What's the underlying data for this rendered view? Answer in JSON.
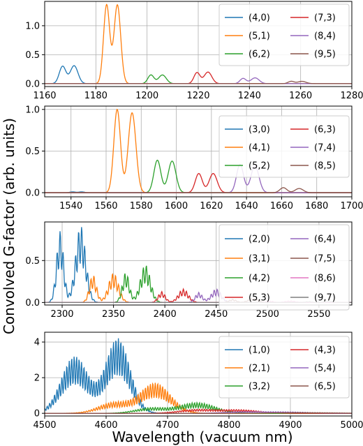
{
  "figure": {
    "ylabel": "Convolved G-factor (arb. units)",
    "xlabel": "Wavelength (vacuum nm)"
  },
  "chart_data": [
    {
      "type": "line",
      "xlim": [
        1160,
        1280
      ],
      "ylim": [
        -0.05,
        1.42
      ],
      "xticks": [
        1160,
        1180,
        1200,
        1220,
        1240,
        1260,
        1280
      ],
      "yticks": [
        0.0,
        0.5,
        1.0
      ],
      "ytick_labels": [
        "0.0",
        "0.5",
        "1.0"
      ],
      "grid": true,
      "legend_position": "top-right",
      "legend_columns": 2,
      "series": [
        {
          "name": "(4,0)",
          "color": "#1f77b4",
          "peaks": [
            [
              1167,
              0.3,
              1.3
            ],
            [
              1171.5,
              0.31,
              1.5
            ]
          ]
        },
        {
          "name": "(5,1)",
          "color": "#ff7f0e",
          "peaks": [
            [
              1184.2,
              1.36,
              1.2
            ],
            [
              1188.4,
              1.36,
              1.3
            ]
          ]
        },
        {
          "name": "(6,2)",
          "color": "#2ca02c",
          "peaks": [
            [
              1201.5,
              0.15,
              1.2
            ],
            [
              1206,
              0.15,
              1.5
            ]
          ]
        },
        {
          "name": "(7,3)",
          "color": "#d62728",
          "peaks": [
            [
              1219.5,
              0.19,
              1.2
            ],
            [
              1223.8,
              0.2,
              1.5
            ]
          ]
        },
        {
          "name": "(8,4)",
          "color": "#9467bd",
          "peaks": [
            [
              1237.5,
              0.09,
              1.2
            ],
            [
              1242.2,
              0.1,
              1.6
            ]
          ]
        },
        {
          "name": "(9,5)",
          "color": "#8c564b",
          "peaks": [
            [
              1256.3,
              0.04,
              1.2
            ],
            [
              1260.5,
              0.04,
              1.6
            ]
          ]
        }
      ]
    },
    {
      "type": "line",
      "xlim": [
        1525,
        1700
      ],
      "ylim": [
        -0.05,
        1.04
      ],
      "xticks": [
        1540,
        1560,
        1580,
        1600,
        1620,
        1640,
        1660,
        1680,
        1700
      ],
      "yticks": [
        0.0,
        0.5,
        1.0
      ],
      "ytick_labels": [
        "0.0",
        "0.5",
        "1.0"
      ],
      "grid": true,
      "legend_position": "top-right",
      "legend_columns": 2,
      "series": [
        {
          "name": "(3,0)",
          "color": "#1f77b4",
          "peaks": [
            [
              1541,
              0.01,
              1.5
            ],
            [
              1546,
              0.01,
              1.5
            ]
          ]
        },
        {
          "name": "(4,1)",
          "color": "#ff7f0e",
          "peaks": [
            [
              1566.3,
              1.0,
              1.9
            ],
            [
              1574.8,
              0.96,
              2.2
            ]
          ]
        },
        {
          "name": "(5,2)",
          "color": "#2ca02c",
          "peaks": [
            [
              1589.2,
              0.39,
              2.0
            ],
            [
              1597.6,
              0.38,
              2.2
            ]
          ]
        },
        {
          "name": "(6,3)",
          "color": "#d62728",
          "peaks": [
            [
              1612.8,
              0.23,
              2.0
            ],
            [
              1621,
              0.23,
              2.3
            ]
          ]
        },
        {
          "name": "(7,4)",
          "color": "#9467bd",
          "peaks": [
            [
              1636.3,
              0.34,
              2.0
            ],
            [
              1644.8,
              0.32,
              2.3
            ]
          ]
        },
        {
          "name": "(8,5)",
          "color": "#8c564b",
          "peaks": [
            [
              1661,
              0.06,
              2.0
            ],
            [
              1670,
              0.05,
              2.3
            ]
          ]
        }
      ]
    },
    {
      "type": "line",
      "xlim": [
        2283,
        2582
      ],
      "ylim": [
        -0.03,
        0.96
      ],
      "xticks": [
        2300,
        2350,
        2400,
        2450,
        2500,
        2550
      ],
      "yticks": [
        0.0,
        0.5
      ],
      "ytick_labels": [
        "0.0",
        "0.5"
      ],
      "grid": true,
      "legend_position": "top-right",
      "legend_columns": 2,
      "series": [
        {
          "name": "(2,0)",
          "color": "#1f77b4",
          "peaks": [
            [
              2298,
              0.85,
              3.5
            ],
            [
              2318,
              0.92,
              5.0
            ]
          ]
        },
        {
          "name": "(3,1)",
          "color": "#ff7f0e",
          "peaks": [
            [
              2330,
              0.33,
              3.5
            ],
            [
              2350,
              0.35,
              5.0
            ]
          ]
        },
        {
          "name": "(4,2)",
          "color": "#2ca02c",
          "peaks": [
            [
              2362,
              0.36,
              3.5
            ],
            [
              2381,
              0.45,
              5.0
            ]
          ]
        },
        {
          "name": "(5,3)",
          "color": "#d62728",
          "peaks": [
            [
              2397,
              0.13,
              3.5
            ],
            [
              2418,
              0.16,
              5.0
            ]
          ]
        },
        {
          "name": "(6,4)",
          "color": "#9467bd",
          "peaks": [
            [
              2433,
              0.12,
              3.5
            ],
            [
              2450,
              0.16,
              5.0
            ]
          ]
        },
        {
          "name": "(7,5)",
          "color": "#8c564b",
          "peaks": [
            [
              2466,
              0.04,
              3.5
            ],
            [
              2486,
              0.05,
              5.0
            ]
          ]
        },
        {
          "name": "(8,6)",
          "color": "#e377c2",
          "peaks": [
            [
              2502,
              0.02,
              3.5
            ],
            [
              2522,
              0.02,
              5.0
            ]
          ]
        },
        {
          "name": "(9,7)",
          "color": "#7f7f7f",
          "peaks": [
            [
              2540,
              0.01,
              3.5
            ],
            [
              2560,
              0.01,
              5.0
            ]
          ]
        }
      ]
    },
    {
      "type": "line",
      "xlim": [
        4500,
        5000
      ],
      "ylim": [
        -0.15,
        4.55
      ],
      "xticks": [
        4500,
        4600,
        4700,
        4800,
        4900,
        5000
      ],
      "yticks": [
        0,
        2,
        4
      ],
      "ytick_labels": [
        "0",
        "2",
        "4"
      ],
      "grid": true,
      "legend_position": "top-right",
      "legend_columns": 2,
      "series": [
        {
          "name": "(1,0)",
          "color": "#1f77b4",
          "peaks": [
            [
              4549,
              3.2,
              22
            ],
            [
              4619,
              4.2,
              20
            ]
          ]
        },
        {
          "name": "(2,1)",
          "color": "#ff7f0e",
          "peaks": [
            [
              4612,
              0.6,
              25
            ],
            [
              4680,
              1.7,
              25
            ]
          ]
        },
        {
          "name": "(3,2)",
          "color": "#2ca02c",
          "peaks": [
            [
              4672,
              0.3,
              25
            ],
            [
              4748,
              0.6,
              30
            ]
          ]
        },
        {
          "name": "(4,3)",
          "color": "#d62728",
          "peaks": [
            [
              4745,
              0.2,
              28
            ],
            [
              4815,
              0.2,
              35
            ]
          ]
        },
        {
          "name": "(5,4)",
          "color": "#9467bd",
          "peaks": [
            [
              4820,
              0.08,
              30
            ],
            [
              4890,
              0.08,
              40
            ]
          ]
        },
        {
          "name": "(6,5)",
          "color": "#8c564b",
          "peaks": [
            [
              4890,
              0.03,
              35
            ],
            [
              4950,
              0.03,
              40
            ]
          ]
        }
      ]
    }
  ]
}
